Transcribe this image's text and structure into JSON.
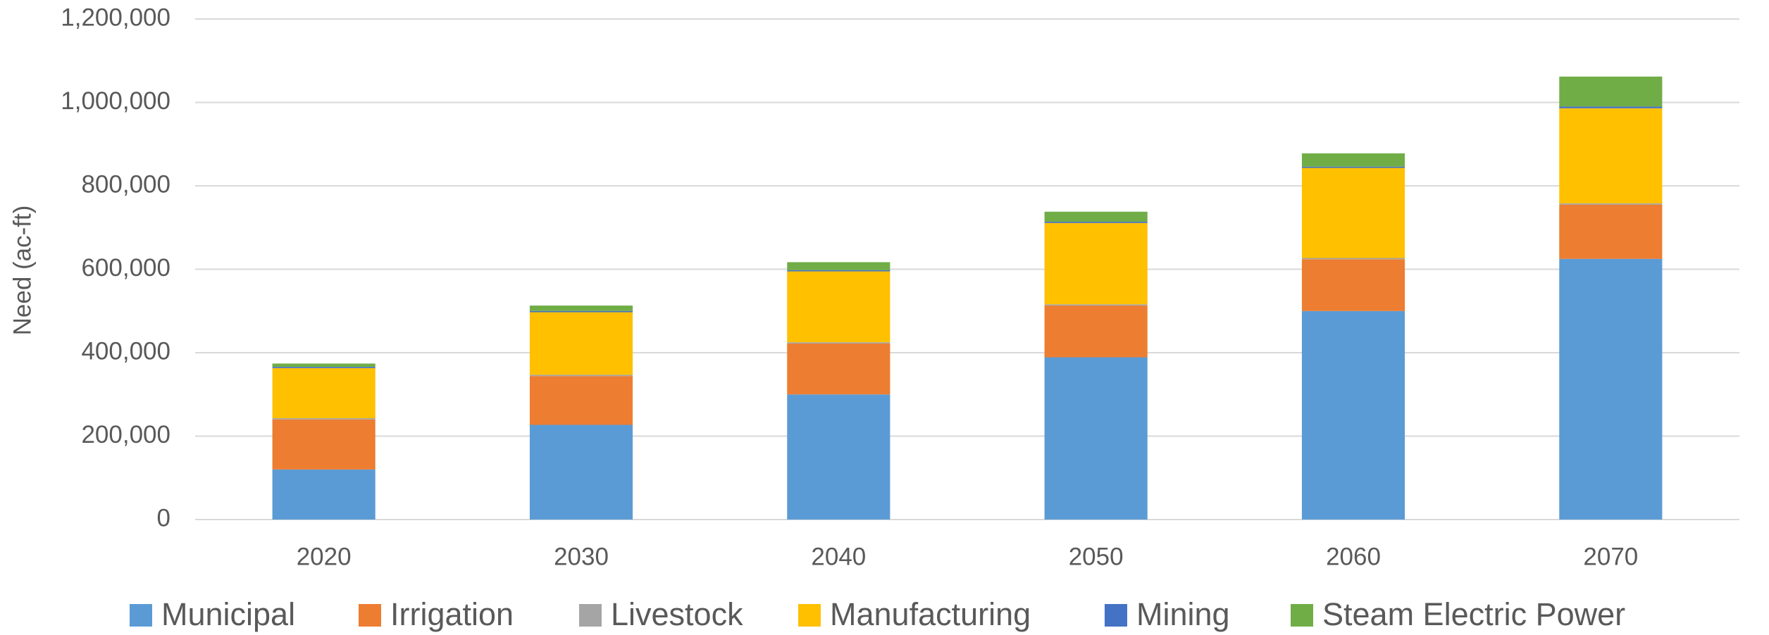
{
  "chart_data": {
    "type": "stacked_bar",
    "y_label": "Need (ac-ft)",
    "categories": [
      "2020",
      "2030",
      "2040",
      "2050",
      "2060",
      "2070"
    ],
    "series": [
      {
        "name": "Municipal",
        "color": "#5b9bd5",
        "values": [
          120000,
          227000,
          300000,
          389000,
          500000,
          625000
        ]
      },
      {
        "name": "Irrigation",
        "color": "#ed7d31",
        "values": [
          120000,
          117000,
          122000,
          124000,
          124000,
          130000
        ]
      },
      {
        "name": "Livestock",
        "color": "#a5a5a5",
        "values": [
          3000,
          3000,
          3000,
          3000,
          3000,
          3000
        ]
      },
      {
        "name": "Manufacturing",
        "color": "#ffc000",
        "values": [
          120000,
          150000,
          170000,
          195000,
          216000,
          228000
        ]
      },
      {
        "name": "Mining",
        "color": "#4472c4",
        "values": [
          3000,
          3000,
          3000,
          3000,
          3000,
          4000
        ]
      },
      {
        "name": "Steam Electric Power",
        "color": "#70ad47",
        "values": [
          8000,
          13000,
          19000,
          24000,
          32000,
          72000
        ]
      }
    ],
    "ylim": [
      0,
      1200000
    ],
    "yticks": [
      0,
      {
        "value": 200000,
        "label": "200,000"
      },
      {
        "value": 400000,
        "label": "400,000"
      },
      {
        "value": 600000,
        "label": "600,000"
      },
      {
        "value": 800000,
        "label": "800,000"
      },
      {
        "value": 1000000,
        "label": "1,000,000"
      },
      {
        "value": 1200000,
        "label": "1,200,000"
      }
    ],
    "grid": true,
    "legend": "bottom"
  }
}
